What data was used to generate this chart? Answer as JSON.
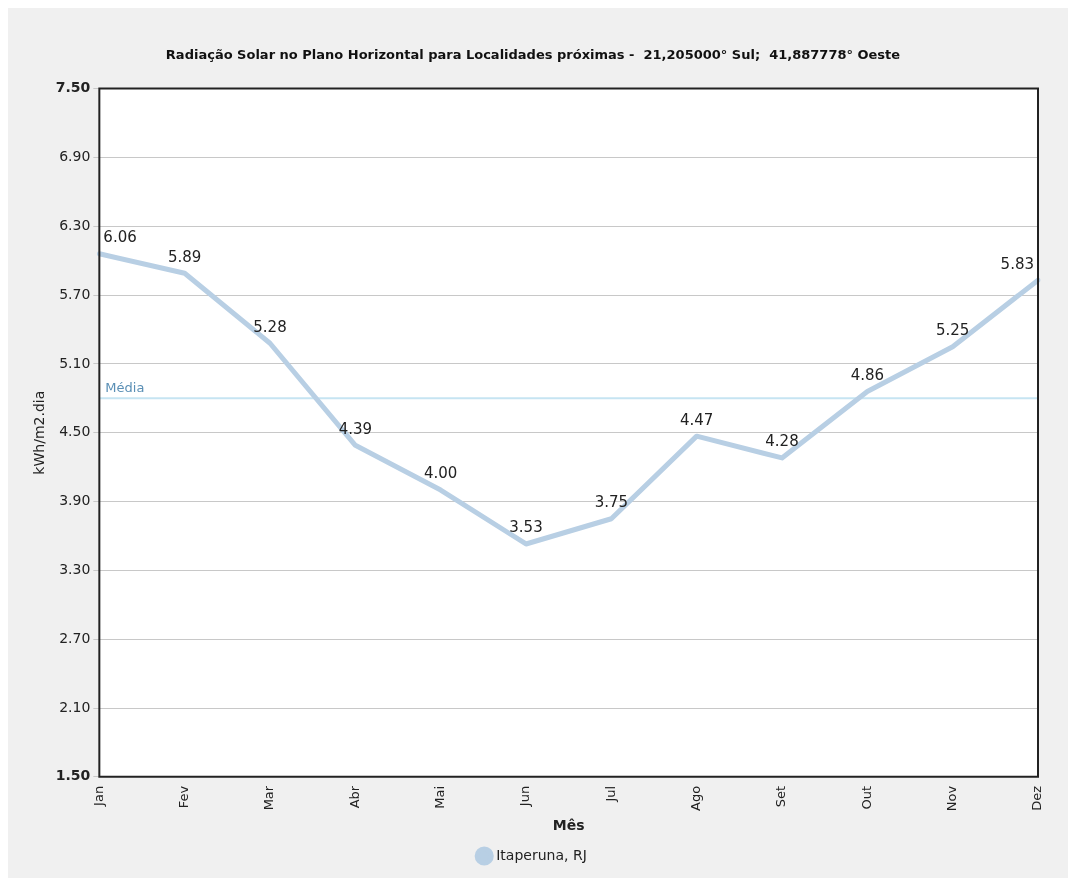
{
  "chart_data": {
    "type": "line",
    "title": "Radiação Solar no Plano Horizontal para Localidades próximas -  21,205000° Sul;  41,887778° Oeste",
    "xlabel": "Mês",
    "ylabel": "kWh/m2.dia",
    "categories": [
      "Jan",
      "Fev",
      "Mar",
      "Abr",
      "Mai",
      "Jun",
      "Jul",
      "Ago",
      "Set",
      "Out",
      "Nov",
      "Dez"
    ],
    "series": [
      {
        "name": "Itaperuna, RJ",
        "color": "#b8cfe4",
        "values": [
          6.06,
          5.89,
          5.28,
          4.39,
          4.0,
          3.53,
          3.75,
          4.47,
          4.28,
          4.86,
          5.25,
          5.83
        ],
        "value_labels": [
          "6.06",
          "5.89",
          "5.28",
          "4.39",
          "4.00",
          "3.53",
          "3.75",
          "4.47",
          "4.28",
          "4.86",
          "5.25",
          "5.83"
        ]
      }
    ],
    "ylim": [
      1.5,
      7.5
    ],
    "yticks": [
      {
        "value": 1.5,
        "label": "1.50"
      },
      {
        "value": 2.1,
        "label": "2.10"
      },
      {
        "value": 2.7,
        "label": "2.70"
      },
      {
        "value": 3.3,
        "label": "3.30"
      },
      {
        "value": 3.9,
        "label": "3.90"
      },
      {
        "value": 4.5,
        "label": "4.50"
      },
      {
        "value": 5.1,
        "label": "5.10"
      },
      {
        "value": 5.7,
        "label": "5.70"
      },
      {
        "value": 6.3,
        "label": "6.30"
      },
      {
        "value": 6.9,
        "label": "6.90"
      },
      {
        "value": 7.5,
        "label": "7.50"
      }
    ],
    "ref_lines": [
      {
        "axis": "y",
        "value": 4.8,
        "label": "Média",
        "color": "#c6e4f2"
      }
    ],
    "grid": "y",
    "legend": "bottom",
    "marker": "none",
    "line_style": "solid"
  }
}
